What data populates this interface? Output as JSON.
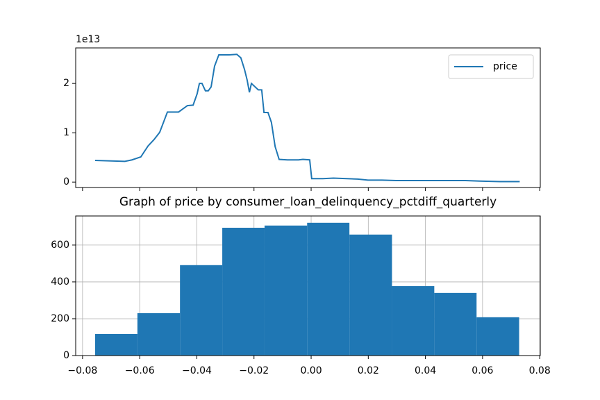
{
  "chart_data": [
    {
      "type": "line",
      "x": [
        -0.0756,
        -0.0652,
        -0.0627,
        -0.0596,
        -0.0571,
        -0.055,
        -0.053,
        -0.0503,
        -0.0464,
        -0.0433,
        -0.0413,
        -0.0399,
        -0.0391,
        -0.0382,
        -0.037,
        -0.036,
        -0.035,
        -0.0338,
        -0.0323,
        -0.0287,
        -0.026,
        -0.0246,
        -0.0233,
        -0.0224,
        -0.0216,
        -0.0209,
        -0.0185,
        -0.0173,
        -0.0165,
        -0.0151,
        -0.0139,
        -0.0126,
        -0.0112,
        -0.0083,
        -0.0044,
        -0.0029,
        -0.0005,
        0.0002,
        0.0041,
        0.0078,
        0.0126,
        0.0163,
        0.0199,
        0.0248,
        0.0297,
        0.037,
        0.0467,
        0.054,
        0.0589,
        0.0661,
        0.073
      ],
      "series": [
        {
          "name": "price",
          "color": "#1f77b4",
          "values": [
            0.44,
            0.42,
            0.45,
            0.51,
            0.73,
            0.86,
            1.01,
            1.42,
            1.42,
            1.55,
            1.56,
            1.79,
            2.0,
            2.0,
            1.85,
            1.85,
            1.93,
            2.35,
            2.58,
            2.58,
            2.59,
            2.52,
            2.28,
            2.07,
            1.82,
            2.0,
            1.87,
            1.87,
            1.41,
            1.41,
            1.21,
            0.72,
            0.46,
            0.45,
            0.45,
            0.46,
            0.45,
            0.07,
            0.07,
            0.08,
            0.07,
            0.06,
            0.04,
            0.04,
            0.03,
            0.03,
            0.03,
            0.03,
            0.02,
            0.01,
            0.01
          ]
        }
      ],
      "xlim": [
        -0.0824,
        0.0802
      ],
      "xticks": [
        -0.08,
        -0.06,
        -0.04,
        -0.02,
        0.0,
        0.02,
        0.04,
        0.06,
        0.08
      ],
      "ylim": [
        -0.11,
        2.72
      ],
      "yticks": [
        0,
        1,
        2
      ],
      "y_offset_label": "1e13",
      "legend": "upper right",
      "grid": false
    },
    {
      "type": "histogram",
      "title": "Graph of price by consumer_loan_delinquency_pctdiff_quarterly",
      "bins": [
        -0.0756,
        -0.0608,
        -0.0459,
        -0.0311,
        -0.0163,
        -0.0014,
        0.0134,
        0.0283,
        0.0431,
        0.0579,
        0.0728
      ],
      "values": [
        117,
        230,
        491,
        694,
        706,
        721,
        657,
        377,
        340,
        208
      ],
      "color": "#1f77b4",
      "xlim": [
        -0.0824,
        0.0802
      ],
      "xticks": [
        {
          "value": -0.08,
          "label": "−0.08"
        },
        {
          "value": -0.06,
          "label": "−0.06"
        },
        {
          "value": -0.04,
          "label": "−0.04"
        },
        {
          "value": -0.02,
          "label": "−0.02"
        },
        {
          "value": 0.0,
          "label": "0.00"
        },
        {
          "value": 0.02,
          "label": "0.02"
        },
        {
          "value": 0.04,
          "label": "0.04"
        },
        {
          "value": 0.06,
          "label": "0.06"
        },
        {
          "value": 0.08,
          "label": "0.08"
        }
      ],
      "ylim": [
        0,
        758
      ],
      "yticks": [
        0,
        200,
        400,
        600
      ],
      "grid": true
    }
  ]
}
